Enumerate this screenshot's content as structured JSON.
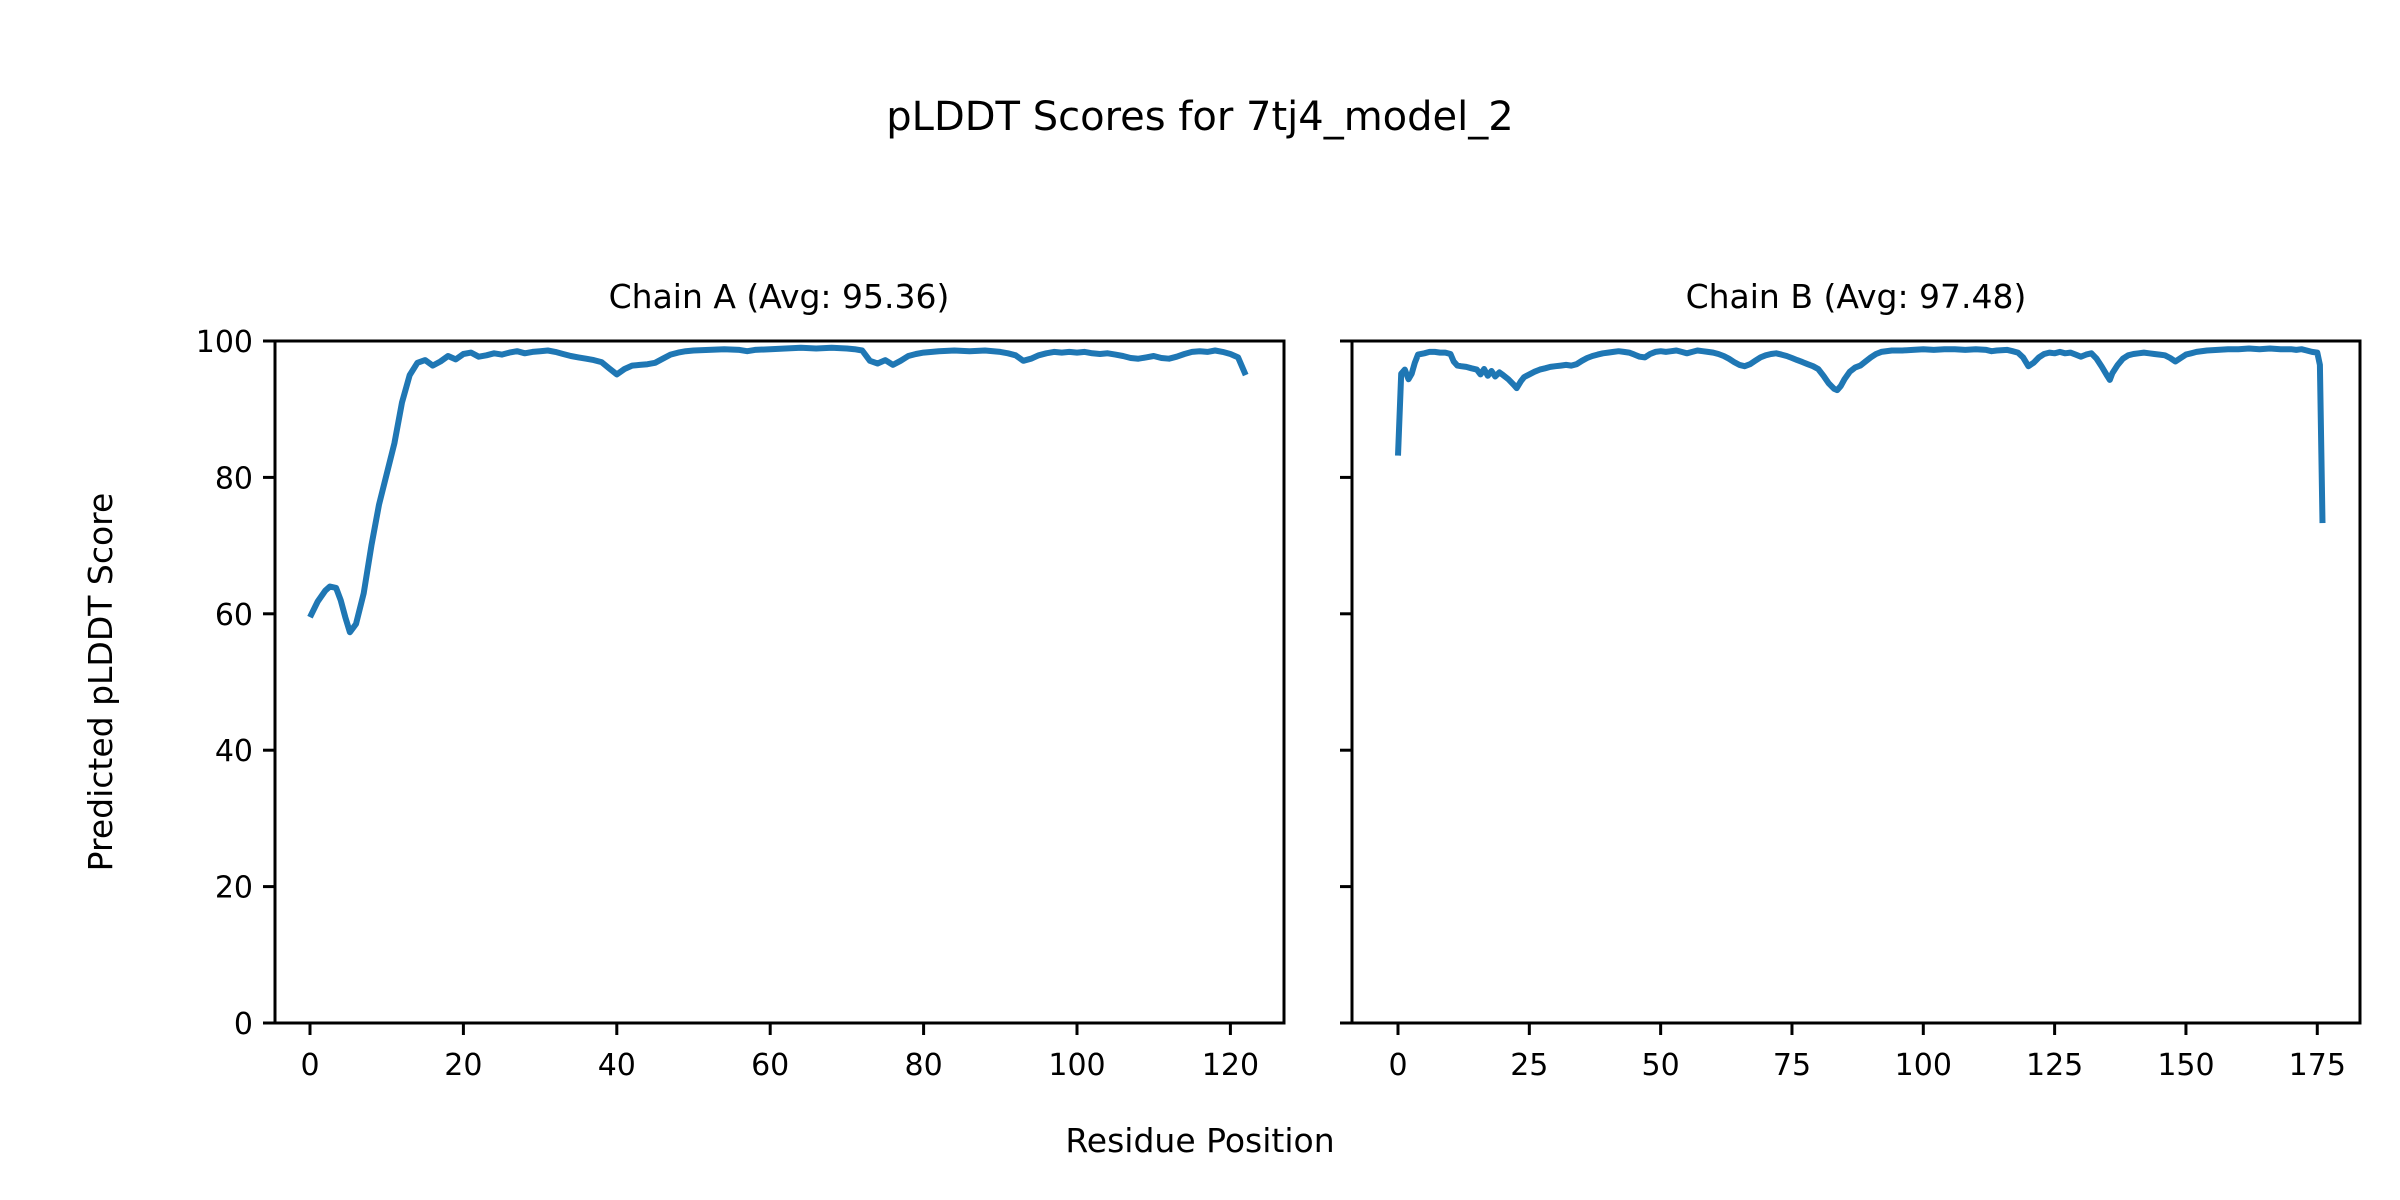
{
  "figure": {
    "title": "pLDDT Scores for 7tj4_model_2",
    "xlabel": "Residue Position",
    "ylabel": "Predicted pLDDT Score",
    "line_color": "#1f77b4",
    "axis_color": "#000000",
    "background_color": "#ffffff"
  },
  "chart_data": [
    {
      "type": "line",
      "chain": "A",
      "title": "Chain A (Avg: 95.36)",
      "avg": 95.36,
      "xlabel": "Residue Position",
      "ylabel": "Predicted pLDDT Score",
      "ylim": [
        0,
        100
      ],
      "xticks": [
        0,
        20,
        40,
        60,
        80,
        100,
        120
      ],
      "yticks": [
        0,
        20,
        40,
        60,
        80,
        100
      ],
      "grid": false,
      "legend": "none",
      "line_color": "#1f77b4",
      "points": [
        [
          0,
          59.5
        ],
        [
          1,
          61.8
        ],
        [
          2,
          63.4
        ],
        [
          2.6,
          64.0
        ],
        [
          3.4,
          63.8
        ],
        [
          4,
          62.0
        ],
        [
          4.6,
          59.5
        ],
        [
          5.2,
          57.3
        ],
        [
          6,
          58.5
        ],
        [
          7,
          63.0
        ],
        [
          8,
          70.0
        ],
        [
          9,
          76.0
        ],
        [
          10,
          80.5
        ],
        [
          11,
          85.0
        ],
        [
          12,
          91.0
        ],
        [
          13,
          95.0
        ],
        [
          14,
          96.8
        ],
        [
          15,
          97.2
        ],
        [
          16,
          96.4
        ],
        [
          17,
          97.0
        ],
        [
          18,
          97.8
        ],
        [
          19,
          97.3
        ],
        [
          20,
          98.1
        ],
        [
          21,
          98.3
        ],
        [
          22,
          97.7
        ],
        [
          23,
          97.9
        ],
        [
          24,
          98.2
        ],
        [
          25,
          98.0
        ],
        [
          26,
          98.3
        ],
        [
          27,
          98.5
        ],
        [
          28,
          98.2
        ],
        [
          29,
          98.4
        ],
        [
          30,
          98.5
        ],
        [
          31,
          98.6
        ],
        [
          32,
          98.4
        ],
        [
          33,
          98.1
        ],
        [
          34,
          97.8
        ],
        [
          35,
          97.6
        ],
        [
          36,
          97.4
        ],
        [
          37,
          97.2
        ],
        [
          38,
          96.9
        ],
        [
          39,
          96.0
        ],
        [
          40,
          95.1
        ],
        [
          41,
          95.9
        ],
        [
          42,
          96.4
        ],
        [
          43,
          96.5
        ],
        [
          44,
          96.6
        ],
        [
          45,
          96.8
        ],
        [
          46,
          97.4
        ],
        [
          47,
          98.0
        ],
        [
          48,
          98.3
        ],
        [
          49,
          98.5
        ],
        [
          50,
          98.6
        ],
        [
          52,
          98.7
        ],
        [
          54,
          98.8
        ],
        [
          56,
          98.7
        ],
        [
          57,
          98.5
        ],
        [
          58,
          98.7
        ],
        [
          60,
          98.8
        ],
        [
          62,
          98.9
        ],
        [
          64,
          99.0
        ],
        [
          66,
          98.9
        ],
        [
          68,
          99.0
        ],
        [
          70,
          98.9
        ],
        [
          71,
          98.8
        ],
        [
          72,
          98.6
        ],
        [
          73,
          97.1
        ],
        [
          74,
          96.7
        ],
        [
          75,
          97.2
        ],
        [
          76,
          96.5
        ],
        [
          77,
          97.1
        ],
        [
          78,
          97.8
        ],
        [
          79,
          98.1
        ],
        [
          80,
          98.3
        ],
        [
          82,
          98.5
        ],
        [
          84,
          98.6
        ],
        [
          86,
          98.5
        ],
        [
          88,
          98.6
        ],
        [
          90,
          98.4
        ],
        [
          91,
          98.2
        ],
        [
          92,
          97.9
        ],
        [
          93,
          97.1
        ],
        [
          94,
          97.4
        ],
        [
          95,
          97.9
        ],
        [
          96,
          98.2
        ],
        [
          97,
          98.4
        ],
        [
          98,
          98.3
        ],
        [
          99,
          98.4
        ],
        [
          100,
          98.3
        ],
        [
          101,
          98.4
        ],
        [
          102,
          98.2
        ],
        [
          103,
          98.1
        ],
        [
          104,
          98.2
        ],
        [
          105,
          98.0
        ],
        [
          106,
          97.8
        ],
        [
          107,
          97.5
        ],
        [
          108,
          97.4
        ],
        [
          109,
          97.6
        ],
        [
          110,
          97.8
        ],
        [
          111,
          97.5
        ],
        [
          112,
          97.4
        ],
        [
          113,
          97.7
        ],
        [
          114,
          98.1
        ],
        [
          115,
          98.4
        ],
        [
          116,
          98.5
        ],
        [
          117,
          98.4
        ],
        [
          118,
          98.6
        ],
        [
          119,
          98.4
        ],
        [
          120,
          98.1
        ],
        [
          121,
          97.6
        ],
        [
          122,
          95.0
        ]
      ]
    },
    {
      "type": "line",
      "chain": "B",
      "title": "Chain B (Avg: 97.48)",
      "avg": 97.48,
      "xlabel": "Residue Position",
      "ylabel": "Predicted pLDDT Score",
      "ylim": [
        0,
        100
      ],
      "xticks": [
        0,
        25,
        50,
        75,
        100,
        125,
        150,
        175
      ],
      "yticks": [
        0,
        20,
        40,
        60,
        80,
        100
      ],
      "ytick_labels_visible": false,
      "grid": false,
      "legend": "none",
      "line_color": "#1f77b4",
      "points": [
        [
          0,
          83.2
        ],
        [
          0.6,
          95.2
        ],
        [
          1.3,
          95.8
        ],
        [
          2,
          94.4
        ],
        [
          2.6,
          95.2
        ],
        [
          3.2,
          96.8
        ],
        [
          3.8,
          98.0
        ],
        [
          5,
          98.2
        ],
        [
          6,
          98.4
        ],
        [
          7,
          98.4
        ],
        [
          8,
          98.3
        ],
        [
          9,
          98.3
        ],
        [
          10,
          98.1
        ],
        [
          10.6,
          97.0
        ],
        [
          11.3,
          96.4
        ],
        [
          12,
          96.3
        ],
        [
          13,
          96.2
        ],
        [
          14,
          96.0
        ],
        [
          15,
          95.8
        ],
        [
          15.7,
          95.1
        ],
        [
          16.4,
          95.9
        ],
        [
          17.1,
          94.9
        ],
        [
          17.8,
          95.6
        ],
        [
          18.5,
          94.8
        ],
        [
          19.3,
          95.4
        ],
        [
          20,
          95.0
        ],
        [
          21,
          94.4
        ],
        [
          22,
          93.6
        ],
        [
          22.6,
          93.1
        ],
        [
          23.4,
          94.1
        ],
        [
          24,
          94.7
        ],
        [
          25,
          95.1
        ],
        [
          26,
          95.5
        ],
        [
          27,
          95.8
        ],
        [
          28,
          96.0
        ],
        [
          29,
          96.2
        ],
        [
          30,
          96.3
        ],
        [
          31,
          96.4
        ],
        [
          32,
          96.5
        ],
        [
          33,
          96.4
        ],
        [
          34,
          96.6
        ],
        [
          35,
          97.1
        ],
        [
          36,
          97.5
        ],
        [
          37,
          97.8
        ],
        [
          38,
          98.0
        ],
        [
          39,
          98.2
        ],
        [
          40,
          98.3
        ],
        [
          41,
          98.4
        ],
        [
          42,
          98.5
        ],
        [
          43,
          98.4
        ],
        [
          44,
          98.3
        ],
        [
          45,
          98.0
        ],
        [
          46,
          97.7
        ],
        [
          47,
          97.6
        ],
        [
          48,
          98.1
        ],
        [
          49,
          98.4
        ],
        [
          50,
          98.5
        ],
        [
          51,
          98.4
        ],
        [
          52,
          98.5
        ],
        [
          53,
          98.6
        ],
        [
          54,
          98.4
        ],
        [
          55,
          98.2
        ],
        [
          56,
          98.4
        ],
        [
          57,
          98.6
        ],
        [
          58,
          98.5
        ],
        [
          59,
          98.4
        ],
        [
          60,
          98.3
        ],
        [
          61,
          98.1
        ],
        [
          62,
          97.8
        ],
        [
          63,
          97.4
        ],
        [
          64,
          96.9
        ],
        [
          65,
          96.5
        ],
        [
          66,
          96.3
        ],
        [
          67,
          96.6
        ],
        [
          68,
          97.1
        ],
        [
          69,
          97.6
        ],
        [
          70,
          97.9
        ],
        [
          71,
          98.1
        ],
        [
          72,
          98.2
        ],
        [
          73,
          98.0
        ],
        [
          74,
          97.8
        ],
        [
          75,
          97.5
        ],
        [
          76,
          97.2
        ],
        [
          77,
          96.9
        ],
        [
          78,
          96.6
        ],
        [
          79,
          96.3
        ],
        [
          80,
          95.9
        ],
        [
          81,
          94.9
        ],
        [
          82,
          93.8
        ],
        [
          83,
          93.0
        ],
        [
          83.6,
          92.8
        ],
        [
          84.3,
          93.4
        ],
        [
          85,
          94.4
        ],
        [
          86,
          95.5
        ],
        [
          87,
          96.1
        ],
        [
          88,
          96.4
        ],
        [
          89,
          97.0
        ],
        [
          90,
          97.6
        ],
        [
          91,
          98.1
        ],
        [
          92,
          98.4
        ],
        [
          94,
          98.6
        ],
        [
          96,
          98.6
        ],
        [
          98,
          98.7
        ],
        [
          100,
          98.8
        ],
        [
          102,
          98.7
        ],
        [
          104,
          98.8
        ],
        [
          106,
          98.8
        ],
        [
          108,
          98.7
        ],
        [
          110,
          98.8
        ],
        [
          112,
          98.7
        ],
        [
          113,
          98.5
        ],
        [
          114,
          98.6
        ],
        [
          116,
          98.7
        ],
        [
          117,
          98.5
        ],
        [
          118,
          98.3
        ],
        [
          119,
          97.6
        ],
        [
          120,
          96.3
        ],
        [
          121,
          96.8
        ],
        [
          122,
          97.6
        ],
        [
          123,
          98.1
        ],
        [
          124,
          98.3
        ],
        [
          125,
          98.2
        ],
        [
          126,
          98.4
        ],
        [
          127,
          98.2
        ],
        [
          128,
          98.3
        ],
        [
          129,
          98.0
        ],
        [
          130,
          97.7
        ],
        [
          131,
          98.0
        ],
        [
          132,
          98.2
        ],
        [
          133,
          97.4
        ],
        [
          134,
          96.2
        ],
        [
          135,
          94.9
        ],
        [
          135.5,
          94.3
        ],
        [
          136,
          95.3
        ],
        [
          137,
          96.5
        ],
        [
          138,
          97.4
        ],
        [
          139,
          97.9
        ],
        [
          140,
          98.1
        ],
        [
          141,
          98.2
        ],
        [
          142,
          98.3
        ],
        [
          143,
          98.2
        ],
        [
          144,
          98.1
        ],
        [
          145,
          98.0
        ],
        [
          146,
          97.9
        ],
        [
          147,
          97.5
        ],
        [
          148,
          97.0
        ],
        [
          149,
          97.5
        ],
        [
          150,
          98.0
        ],
        [
          151,
          98.2
        ],
        [
          152,
          98.4
        ],
        [
          154,
          98.6
        ],
        [
          156,
          98.7
        ],
        [
          158,
          98.8
        ],
        [
          160,
          98.8
        ],
        [
          162,
          98.9
        ],
        [
          164,
          98.8
        ],
        [
          166,
          98.9
        ],
        [
          168,
          98.8
        ],
        [
          170,
          98.8
        ],
        [
          171,
          98.7
        ],
        [
          172,
          98.8
        ],
        [
          173,
          98.6
        ],
        [
          174,
          98.4
        ],
        [
          175,
          98.3
        ],
        [
          175.5,
          96.5
        ],
        [
          176,
          73.3
        ]
      ]
    }
  ]
}
